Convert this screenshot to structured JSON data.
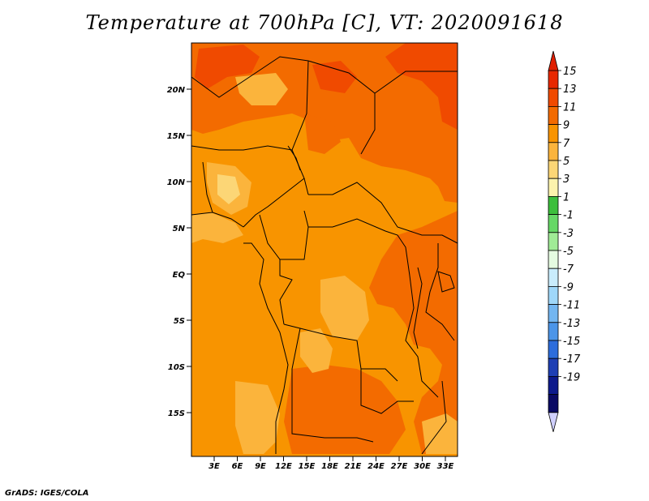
{
  "title": "Temperature at 700hPa [C], VT: 2020091618",
  "footer": "GrADS: IGES/COLA",
  "lat_labels": [
    "20N",
    "15N",
    "10N",
    "5N",
    "EQ",
    "5S",
    "10S",
    "15S"
  ],
  "lon_labels": [
    "3E",
    "6E",
    "9E",
    "12E",
    "15E",
    "18E",
    "21E",
    "24E",
    "27E",
    "30E",
    "33E"
  ],
  "colorbar": {
    "labels": [
      "15",
      "13",
      "11",
      "9",
      "7",
      "5",
      "3",
      "1",
      "-1",
      "-3",
      "-5",
      "-7",
      "-9",
      "-11",
      "-13",
      "-15",
      "-17",
      "-19"
    ],
    "colors": [
      "#e82800",
      "#f04a00",
      "#f36b00",
      "#f89400",
      "#fbb43c",
      "#fcd676",
      "#fcf3ad",
      "#3cbf3c",
      "#66d866",
      "#a0eb96",
      "#e5fbe1",
      "#c9ecfc",
      "#9fd7f9",
      "#73b6f1",
      "#4c95e8",
      "#2d6ddc",
      "#1e3fb4",
      "#0d1a8c",
      "#0a0a64"
    ],
    "over_color": "#e01e00",
    "under_color": "#d0d0ff"
  }
}
